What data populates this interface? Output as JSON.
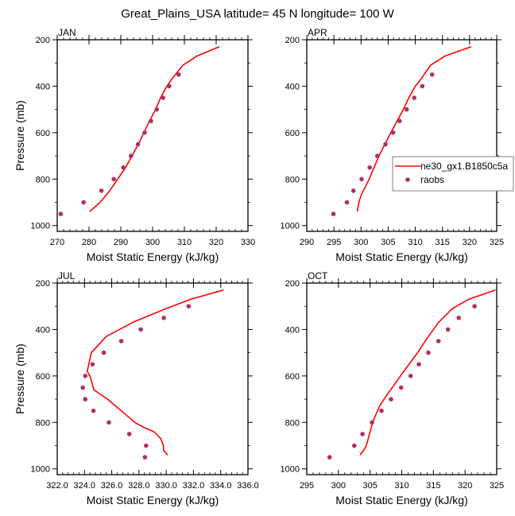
{
  "figure": {
    "title": "Great_Plains_USA  latitude= 45 N longitude= 100 W"
  },
  "legend": {
    "placement": "right-of-top-right-panel",
    "entries": [
      {
        "label": "ne30_gx1.B1850c5a",
        "kind": "line",
        "color": "#ff0000"
      },
      {
        "label": "raobs",
        "kind": "marker",
        "color": "#b03060"
      }
    ]
  },
  "colors": {
    "model_line": "#ff0000",
    "obs_marker": "#b03060",
    "axis": "#000000",
    "legend_border": "#808080"
  },
  "chart_data": [
    {
      "type": "line",
      "panel": "top-left",
      "title": "JAN",
      "xlabel": "Moist Static Energy (kJ/kg)",
      "ylabel": "Pressure (mb)",
      "xlim": [
        270,
        330
      ],
      "ylim": [
        1025,
        200
      ],
      "y_inverted": true,
      "xticks": [
        270,
        280,
        290,
        300,
        310,
        320,
        330
      ],
      "xtick_labels": [
        "270",
        "280",
        "290",
        "300",
        "310",
        "320",
        "330"
      ],
      "yticks": [
        200,
        400,
        600,
        800,
        1000
      ],
      "ytick_labels": [
        "200",
        "400",
        "600",
        "800",
        "1000"
      ],
      "show_ylabel": true,
      "show_xlabel": true,
      "series": [
        {
          "name": "ne30_gx1.B1850c5a",
          "kind": "line",
          "x": [
            280.2,
            283.5,
            286.5,
            289.0,
            291.5,
            293.5,
            295.5,
            297.3,
            299.0,
            301.0,
            302.5,
            304.5,
            306.0,
            309.5,
            314.0,
            321.0
          ],
          "y": [
            940,
            900,
            850,
            800,
            750,
            700,
            650,
            600,
            550,
            500,
            450,
            400,
            370,
            310,
            270,
            230
          ]
        },
        {
          "name": "raobs",
          "kind": "scatter",
          "x": [
            271.1,
            278.3,
            283.9,
            287.8,
            290.8,
            293.2,
            295.4,
            297.5,
            299.5,
            301.3,
            303.3,
            305.2,
            308.2
          ],
          "y": [
            950,
            900,
            850,
            800,
            750,
            700,
            650,
            600,
            550,
            500,
            450,
            400,
            350
          ]
        }
      ]
    },
    {
      "type": "line",
      "panel": "top-right",
      "title": "APR",
      "xlabel": "Moist Static Energy (kJ/kg)",
      "ylabel": "",
      "xlim": [
        290,
        325
      ],
      "ylim": [
        1025,
        200
      ],
      "y_inverted": true,
      "xticks": [
        290,
        295,
        300,
        305,
        310,
        315,
        320,
        325
      ],
      "xtick_labels": [
        "290",
        "295",
        "300",
        "305",
        "310",
        "315",
        "320",
        "325"
      ],
      "yticks": [
        200,
        400,
        600,
        800,
        1000
      ],
      "ytick_labels": [
        "200",
        "400",
        "600",
        "800",
        "1000"
      ],
      "show_ylabel": false,
      "show_xlabel": true,
      "series": [
        {
          "name": "ne30_gx1.B1850c5a",
          "kind": "line",
          "x": [
            299.3,
            299.6,
            300.0,
            301.5,
            303.3,
            305.5,
            307.8,
            308.8,
            310.0,
            311.0,
            312.8,
            315.5,
            320.3
          ],
          "y": [
            940,
            900,
            870,
            800,
            700,
            600,
            500,
            450,
            400,
            370,
            310,
            270,
            230
          ]
        },
        {
          "name": "raobs",
          "kind": "scatter",
          "x": [
            294.9,
            297.4,
            298.6,
            300.1,
            301.6,
            303.0,
            304.5,
            305.9,
            307.1,
            308.4,
            309.8,
            311.3,
            313.1
          ],
          "y": [
            950,
            900,
            850,
            800,
            750,
            700,
            650,
            600,
            550,
            500,
            450,
            400,
            350
          ]
        }
      ]
    },
    {
      "type": "line",
      "panel": "bottom-left",
      "title": "JUL",
      "xlabel": "Moist Static Energy (kJ/kg)",
      "ylabel": "Pressure (mb)",
      "xlim": [
        322,
        336
      ],
      "ylim": [
        1025,
        200
      ],
      "y_inverted": true,
      "xticks": [
        322,
        324,
        326,
        328,
        330,
        332,
        334,
        336
      ],
      "xtick_labels": [
        "322.0",
        "324.0",
        "326.0",
        "328.0",
        "330.0",
        "332.0",
        "334.0",
        "336.0"
      ],
      "yticks": [
        200,
        400,
        600,
        800,
        1000
      ],
      "ytick_labels": [
        "200",
        "400",
        "600",
        "800",
        "1000"
      ],
      "show_ylabel": true,
      "show_xlabel": true,
      "series": [
        {
          "name": "ne30_gx1.B1850c5a",
          "kind": "line",
          "x": [
            330.1,
            329.8,
            329.8,
            329.6,
            329.1,
            328.3,
            327.7,
            326.7,
            325.7,
            324.7,
            324.4,
            324.2,
            324.5,
            325.6,
            327.7,
            330.0,
            331.8,
            334.2
          ],
          "y": [
            940,
            920,
            900,
            870,
            840,
            820,
            800,
            750,
            700,
            660,
            600,
            580,
            500,
            430,
            365,
            310,
            270,
            230
          ]
        },
        {
          "name": "raobs",
          "kind": "scatter",
          "x": [
            328.44,
            328.52,
            327.29,
            325.79,
            324.66,
            324.06,
            323.88,
            324.06,
            324.59,
            325.42,
            326.7,
            328.13,
            329.82,
            331.65
          ],
          "y": [
            950,
            900,
            850,
            800,
            750,
            700,
            650,
            600,
            550,
            500,
            450,
            400,
            350,
            300
          ]
        }
      ]
    },
    {
      "type": "line",
      "panel": "bottom-right",
      "title": "OCT",
      "xlabel": "Moist Static Energy (kJ/kg)",
      "ylabel": "",
      "xlim": [
        295,
        325
      ],
      "ylim": [
        1025,
        200
      ],
      "y_inverted": true,
      "xticks": [
        295,
        300,
        305,
        310,
        315,
        320,
        325
      ],
      "xtick_labels": [
        "295",
        "300",
        "305",
        "310",
        "315",
        "320",
        "325"
      ],
      "yticks": [
        200,
        400,
        600,
        800,
        1000
      ],
      "ytick_labels": [
        "200",
        "400",
        "600",
        "800",
        "1000"
      ],
      "show_ylabel": false,
      "show_xlabel": true,
      "series": [
        {
          "name": "ne30_gx1.B1850c5a",
          "kind": "line",
          "x": [
            303.4,
            304.0,
            304.4,
            304.9,
            305.4,
            305.7,
            306.5,
            307.2,
            309.8,
            312.5,
            314.2,
            315.8,
            318.0,
            320.6,
            324.8
          ],
          "y": [
            940,
            920,
            900,
            850,
            800,
            780,
            730,
            700,
            600,
            500,
            430,
            370,
            310,
            270,
            230
          ]
        },
        {
          "name": "raobs",
          "kind": "scatter",
          "x": [
            298.6,
            302.5,
            303.8,
            305.3,
            306.8,
            308.3,
            309.9,
            311.4,
            312.7,
            314.2,
            315.8,
            317.3,
            319.0,
            321.5
          ],
          "y": [
            950,
            900,
            850,
            800,
            750,
            700,
            650,
            600,
            550,
            500,
            450,
            400,
            350,
            300
          ]
        }
      ]
    }
  ]
}
